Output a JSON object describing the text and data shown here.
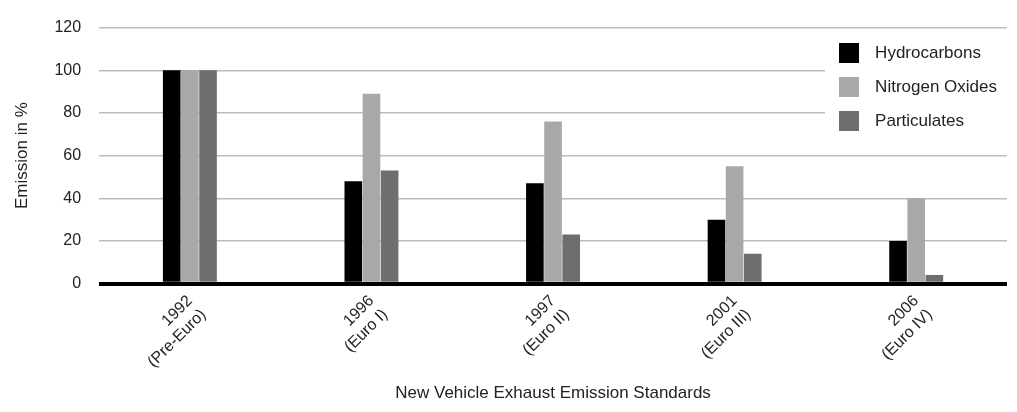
{
  "chart_data": {
    "type": "bar",
    "xlabel": "New Vehicle Exhaust Emission Standards",
    "ylabel": "Emission in %",
    "categories": [
      "1992 (Pre-Euro)",
      "1996 (Euro I)",
      "1997 (Euro II)",
      "2001 (Euro III)",
      "2006 (Euro IV)"
    ],
    "series": [
      {
        "name": "Hydrocarbons",
        "color": "#000000",
        "values": [
          100,
          48,
          47,
          30,
          20
        ]
      },
      {
        "name": "Nitrogen Oxides",
        "color": "#a7a8aa",
        "values": [
          100,
          89,
          76,
          55,
          40
        ]
      },
      {
        "name": "Particulates",
        "color": "#6d6e70",
        "values": [
          100,
          53,
          23,
          14,
          4
        ]
      }
    ],
    "ylim": [
      0,
      120
    ],
    "yticks": [
      0,
      20,
      40,
      60,
      80,
      100,
      120
    ],
    "grid": "y",
    "legend": "top right"
  }
}
